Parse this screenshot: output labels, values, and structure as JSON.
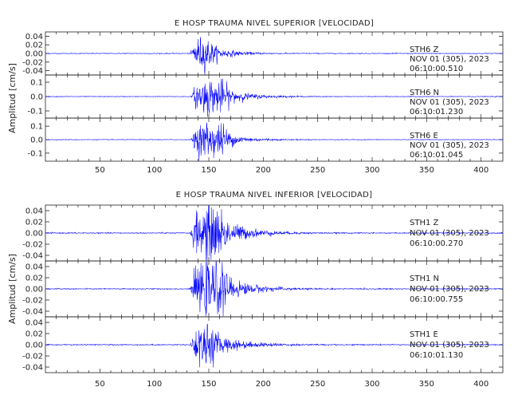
{
  "chart_data": [
    {
      "type": "line",
      "title": "E HOSP TRAUMA NIVEL SUPERIOR [VELOCIDAD]",
      "ylabel": "Amplitud [cm/s]",
      "xlabel": "",
      "xlim": [
        0,
        420
      ],
      "x_ticks": [
        50,
        100,
        150,
        200,
        250,
        300,
        350,
        400
      ],
      "line_color": "#0000ff",
      "grid": false,
      "panels": [
        {
          "station": "STH6",
          "component": "Z",
          "date": "NOV 01 (305), 2023",
          "time": "06:10:00.510",
          "ylim": [
            -0.05,
            0.05
          ],
          "y_ticks": [
            -0.04,
            -0.02,
            0.0,
            0.02,
            0.04
          ],
          "y_tick_labels": [
            "-0.04",
            "-0.02",
            "0.00",
            "0.02",
            "0.04"
          ],
          "noise": 0.0008,
          "onset": 133,
          "peak_time": 140,
          "peak_amp": 0.032,
          "decay": 18,
          "second_peak": 148,
          "second_amp": 0.012
        },
        {
          "station": "STH6",
          "component": "N",
          "date": "NOV 01 (305), 2023",
          "time": "06:10:01.230",
          "ylim": [
            -0.15,
            0.15
          ],
          "y_ticks": [
            -0.1,
            0.0,
            0.1
          ],
          "y_tick_labels": [
            "-0.1",
            "0.0",
            "0.1"
          ],
          "noise": 0.002,
          "onset": 134,
          "peak_time": 149,
          "peak_amp": 0.12,
          "decay": 20,
          "second_peak": 162,
          "second_amp": 0.04
        },
        {
          "station": "STH6",
          "component": "E",
          "date": "NOV 01 (305), 2023",
          "time": "06:10:01.045",
          "ylim": [
            -0.16,
            0.16
          ],
          "y_ticks": [
            -0.1,
            0.0,
            0.1
          ],
          "y_tick_labels": [
            "-0.1",
            "0.0",
            "0.1"
          ],
          "noise": 0.002,
          "onset": 134,
          "peak_time": 148,
          "peak_amp": 0.13,
          "decay": 18,
          "second_peak": 162,
          "second_amp": 0.05
        }
      ]
    },
    {
      "type": "line",
      "title": "E HOSP TRAUMA NIVEL INFERIOR [VELOCIDAD]",
      "ylabel": "Amplitud [cm/s]",
      "xlabel": "",
      "xlim": [
        0,
        420
      ],
      "x_ticks": [
        50,
        100,
        150,
        200,
        250,
        300,
        350,
        400
      ],
      "line_color": "#0000ff",
      "grid": false,
      "panels": [
        {
          "station": "STH1",
          "component": "Z",
          "date": "NOV 01 (305), 2023",
          "time": "06:10:00.270",
          "ylim": [
            -0.05,
            0.05
          ],
          "y_ticks": [
            -0.04,
            -0.02,
            0.0,
            0.02,
            0.04
          ],
          "y_tick_labels": [
            "-0.04",
            "-0.02",
            "0.00",
            "0.02",
            "0.04"
          ],
          "noise": 0.0008,
          "onset": 133,
          "peak_time": 148,
          "peak_amp": 0.046,
          "decay": 22,
          "second_peak": 158,
          "second_amp": 0.015
        },
        {
          "station": "STH1",
          "component": "N",
          "date": "NOV 01 (305), 2023",
          "time": "06:10:00.755",
          "ylim": [
            -0.05,
            0.05
          ],
          "y_ticks": [
            -0.04,
            -0.02,
            0.0,
            0.02,
            0.04
          ],
          "y_tick_labels": [
            "-0.04",
            "-0.02",
            "0.00",
            "0.02",
            "0.04"
          ],
          "noise": 0.0008,
          "onset": 133,
          "peak_time": 148,
          "peak_amp": 0.045,
          "decay": 22,
          "second_peak": 160,
          "second_amp": 0.015
        },
        {
          "station": "STH1",
          "component": "E",
          "date": "NOV 01 (305), 2023",
          "time": "06:10:01.130",
          "ylim": [
            -0.05,
            0.05
          ],
          "y_ticks": [
            -0.04,
            -0.02,
            0.0,
            0.02,
            0.04
          ],
          "y_tick_labels": [
            "-0.04",
            "-0.02",
            "0.00",
            "0.02",
            "0.04"
          ],
          "noise": 0.0008,
          "onset": 133,
          "peak_time": 140,
          "peak_amp": 0.032,
          "decay": 24,
          "second_peak": 150,
          "second_amp": 0.014
        }
      ]
    }
  ]
}
